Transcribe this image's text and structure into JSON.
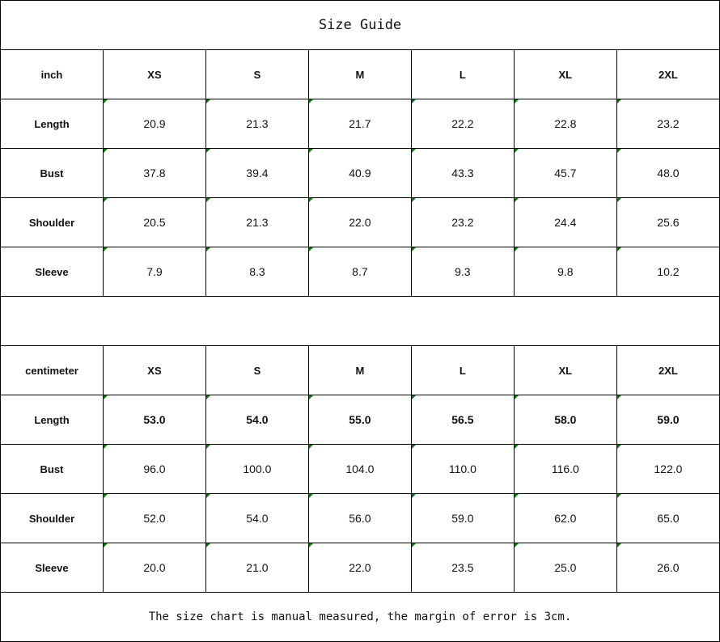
{
  "title": "Size Guide",
  "marker_color": "#0a7a0a",
  "tables": [
    {
      "unit": "inch",
      "sizes": [
        "XS",
        "S",
        "M",
        "L",
        "XL",
        "2XL"
      ],
      "rows": [
        {
          "label": "Length",
          "values": [
            "20.9",
            "21.3",
            "21.7",
            "22.2",
            "22.8",
            "23.2"
          ]
        },
        {
          "label": "Bust",
          "values": [
            "37.8",
            "39.4",
            "40.9",
            "43.3",
            "45.7",
            "48.0"
          ]
        },
        {
          "label": "Shoulder",
          "values": [
            "20.5",
            "21.3",
            "22.0",
            "23.2",
            "24.4",
            "25.6"
          ]
        },
        {
          "label": "Sleeve",
          "values": [
            "7.9",
            "8.3",
            "8.7",
            "9.3",
            "9.8",
            "10.2"
          ]
        }
      ]
    },
    {
      "unit": "centimeter",
      "sizes": [
        "XS",
        "S",
        "M",
        "L",
        "XL",
        "2XL"
      ],
      "rows": [
        {
          "label": "Length",
          "values": [
            "53.0",
            "54.0",
            "55.0",
            "56.5",
            "58.0",
            "59.0"
          ],
          "bold": true
        },
        {
          "label": "Bust",
          "values": [
            "96.0",
            "100.0",
            "104.0",
            "110.0",
            "116.0",
            "122.0"
          ]
        },
        {
          "label": "Shoulder",
          "values": [
            "52.0",
            "54.0",
            "56.0",
            "59.0",
            "62.0",
            "65.0"
          ]
        },
        {
          "label": "Sleeve",
          "values": [
            "20.0",
            "21.0",
            "22.0",
            "23.5",
            "25.0",
            "26.0"
          ]
        }
      ]
    }
  ],
  "note": "The size chart is manual measured, the margin of error is 3cm."
}
